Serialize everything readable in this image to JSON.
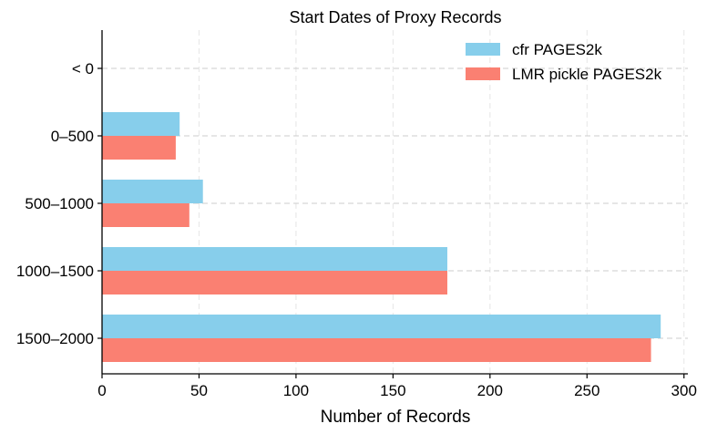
{
  "chart_data": {
    "type": "bar",
    "orientation": "horizontal",
    "title": "Start Dates of Proxy Records",
    "xlabel": "Number of Records",
    "ylabel": "",
    "categories": [
      "< 0",
      "0–500",
      "500–1000",
      "1000–1500",
      "1500–2000"
    ],
    "series": [
      {
        "name": "cfr PAGES2k",
        "color": "#87ceeb",
        "values": [
          0,
          40,
          52,
          178,
          288
        ]
      },
      {
        "name": "LMR pickle PAGES2k",
        "color": "#fa8072",
        "values": [
          0,
          38,
          45,
          178,
          283
        ]
      }
    ],
    "xlim": [
      0,
      302
    ],
    "xticks": [
      0,
      50,
      100,
      150,
      200,
      250,
      300
    ],
    "grid": true,
    "legend_position": "top-right"
  }
}
